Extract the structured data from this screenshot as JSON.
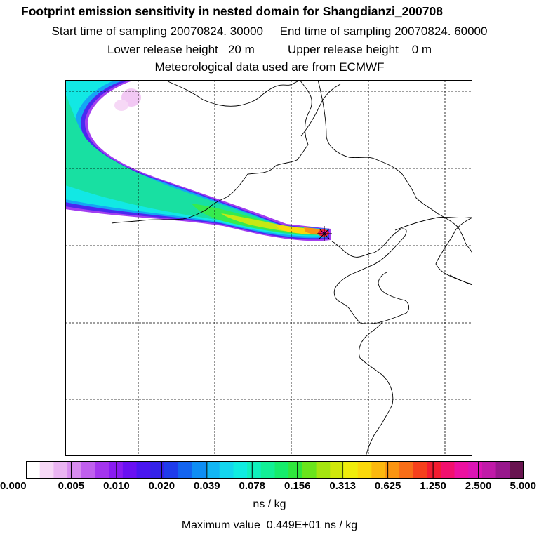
{
  "header": {
    "title": "Footprint emission sensitivity in nested domain for Shangdianzi_200708",
    "start_label": "Start time of sampling 20070824. 30000",
    "end_label": "End time of sampling 20070824. 60000",
    "lower_label": "Lower release height   20 m",
    "upper_label": "Upper release height    0 m",
    "met_label": "Meteorological data used are from ECMWF"
  },
  "colorbar": {
    "ticks": [
      "0.000",
      "0.005",
      "0.010",
      "0.020",
      "0.039",
      "0.078",
      "0.156",
      "0.313",
      "0.625",
      "1.250",
      "2.500",
      "5.000"
    ],
    "colors": [
      "#ffffff",
      "#f6d8f6",
      "#eab4f2",
      "#d88cf0",
      "#c060ee",
      "#a435ee",
      "#8a1bf2",
      "#6a10f2",
      "#4a16f0",
      "#3522e8",
      "#1f3cec",
      "#1364f0",
      "#0f8ef4",
      "#12b6f4",
      "#14d6ee",
      "#10ece0",
      "#10f0bc",
      "#12f096",
      "#16ec6c",
      "#30e63c",
      "#6ae41c",
      "#a4e410",
      "#d0e80c",
      "#f0ec0c",
      "#fad80c",
      "#fcb80e",
      "#fa9412",
      "#f86e18",
      "#f6401c",
      "#f41c30",
      "#f2106e",
      "#ec10a0",
      "#dc14b4",
      "#c01aa8",
      "#98188c",
      "#681450"
    ],
    "units": "ns / kg",
    "max_text": "Maximum value  0.449E+01 ns / kg"
  },
  "map": {
    "station_name": "Shangdianzi",
    "gridlines": "dashed",
    "plume_peak_value": 4.49
  },
  "colors": {
    "frame": "#000000",
    "coast": "#000000",
    "grid": "#000000"
  }
}
